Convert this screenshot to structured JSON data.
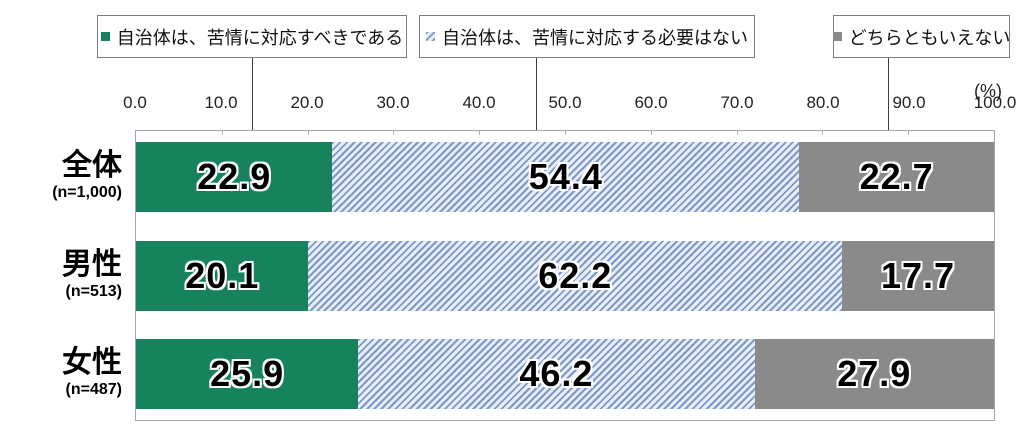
{
  "legend": {
    "items": [
      {
        "label": "自治体は、苦情に対応すべきである",
        "swatch": "solid-green"
      },
      {
        "label": "自治体は、苦情に対応する必要はない",
        "swatch": "blue-diagonal-stripes"
      },
      {
        "label": "どちらともいえない",
        "swatch": "solid-gray"
      }
    ]
  },
  "axis": {
    "unit_label": "(%)",
    "ticks": [
      "0.0",
      "10.0",
      "20.0",
      "30.0",
      "40.0",
      "50.0",
      "60.0",
      "70.0",
      "80.0",
      "90.0",
      "100.0"
    ]
  },
  "colors": {
    "agree_green": "#17835C",
    "neutral_gray": "#8A8A8A",
    "stripe_blue": "#7D98CA",
    "stripe_light": "#E8EDF7",
    "plot_border": "#A6A6A6",
    "legend_border": "#7F7F7F"
  },
  "chart_data": {
    "type": "bar",
    "orientation": "horizontal-stacked",
    "title": "",
    "xlabel": "(%)",
    "ylabel": "",
    "xlim": [
      0,
      100
    ],
    "grid": false,
    "legend_position": "top",
    "categories": [
      "全体",
      "男性",
      "女性"
    ],
    "category_sublabels": [
      "(n=1,000)",
      "(n=513)",
      "(n=487)"
    ],
    "series": [
      {
        "name": "自治体は、苦情に対応すべきである",
        "style": "solid",
        "values": [
          22.9,
          20.1,
          25.9
        ]
      },
      {
        "name": "自治体は、苦情に対応する必要はない",
        "style": "diagonal-stripes",
        "values": [
          54.4,
          62.2,
          46.2
        ]
      },
      {
        "name": "どちらともいえない",
        "style": "solid",
        "values": [
          22.7,
          17.7,
          27.9
        ]
      }
    ]
  }
}
